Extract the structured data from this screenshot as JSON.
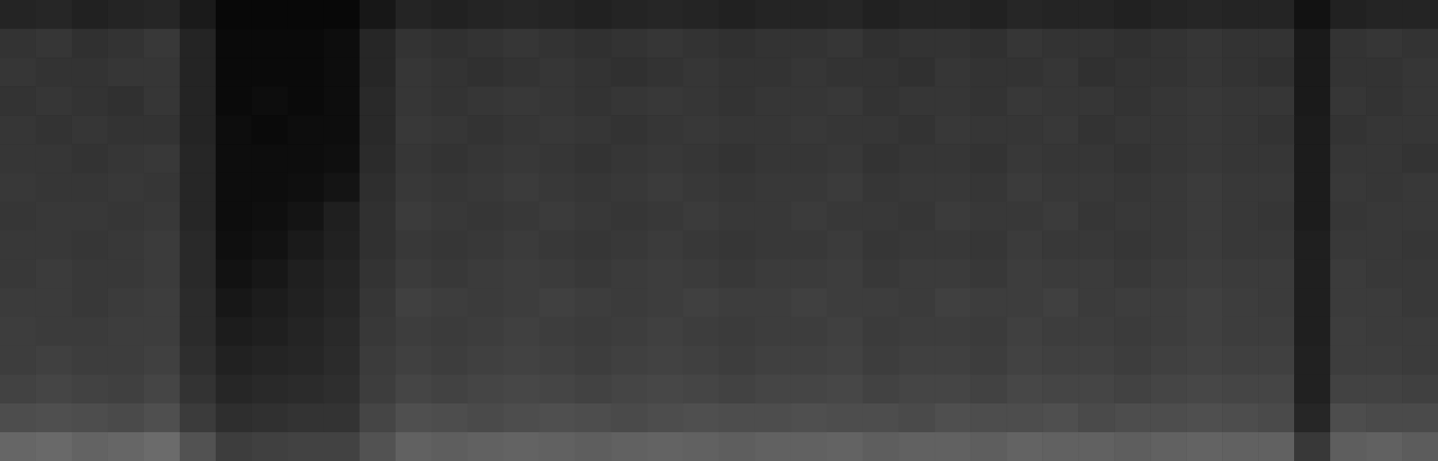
{
  "chart_data": {
    "type": "heatmap",
    "tick_labels": false,
    "grid": false,
    "cells": [
      [
        14,
        15,
        13,
        14,
        15,
        10,
        3,
        3,
        3,
        3,
        9,
        14,
        13,
        14,
        15,
        14,
        13,
        14,
        15,
        14,
        13,
        14,
        14,
        15,
        13,
        14,
        14,
        13,
        15,
        14,
        14,
        13,
        14,
        15,
        14,
        14,
        7,
        13,
        14,
        14
      ],
      [
        20,
        21,
        19,
        20,
        22,
        14,
        4,
        4,
        4,
        5,
        15,
        20,
        19,
        20,
        21,
        20,
        19,
        20,
        21,
        20,
        19,
        20,
        20,
        21,
        19,
        20,
        20,
        19,
        21,
        20,
        20,
        19,
        20,
        21,
        20,
        20,
        10,
        20,
        21,
        20
      ],
      [
        21,
        20,
        20,
        21,
        21,
        14,
        4,
        4,
        4,
        5,
        15,
        21,
        20,
        19,
        20,
        21,
        20,
        19,
        20,
        21,
        20,
        20,
        21,
        20,
        20,
        19,
        21,
        20,
        20,
        21,
        19,
        20,
        20,
        21,
        20,
        19,
        10,
        20,
        20,
        21
      ],
      [
        20,
        21,
        20,
        19,
        21,
        14,
        4,
        5,
        4,
        5,
        16,
        21,
        20,
        21,
        22,
        21,
        20,
        21,
        22,
        21,
        20,
        21,
        21,
        22,
        20,
        21,
        21,
        20,
        22,
        21,
        21,
        20,
        21,
        22,
        21,
        21,
        10,
        21,
        20,
        21
      ],
      [
        21,
        20,
        21,
        20,
        20,
        14,
        5,
        4,
        5,
        5,
        16,
        22,
        21,
        20,
        21,
        22,
        21,
        20,
        21,
        22,
        21,
        21,
        22,
        21,
        21,
        20,
        22,
        21,
        21,
        22,
        20,
        21,
        21,
        22,
        21,
        20,
        11,
        20,
        21,
        21
      ],
      [
        21,
        21,
        20,
        21,
        22,
        15,
        5,
        5,
        5,
        6,
        17,
        21,
        20,
        21,
        22,
        21,
        20,
        21,
        22,
        21,
        20,
        21,
        21,
        22,
        20,
        21,
        21,
        20,
        22,
        21,
        21,
        20,
        21,
        22,
        21,
        21,
        11,
        21,
        21,
        20
      ],
      [
        22,
        21,
        21,
        22,
        21,
        15,
        5,
        5,
        6,
        8,
        18,
        22,
        21,
        22,
        23,
        22,
        21,
        22,
        23,
        22,
        21,
        22,
        22,
        23,
        21,
        22,
        22,
        21,
        23,
        22,
        22,
        21,
        22,
        23,
        22,
        22,
        11,
        22,
        21,
        22
      ],
      [
        21,
        22,
        22,
        21,
        22,
        15,
        5,
        6,
        8,
        12,
        19,
        23,
        22,
        21,
        22,
        23,
        22,
        21,
        22,
        23,
        22,
        22,
        23,
        22,
        22,
        21,
        23,
        22,
        22,
        23,
        21,
        22,
        22,
        23,
        22,
        21,
        11,
        21,
        22,
        22
      ],
      [
        22,
        22,
        21,
        22,
        23,
        16,
        6,
        7,
        10,
        13,
        19,
        22,
        21,
        22,
        23,
        22,
        21,
        22,
        23,
        22,
        21,
        22,
        22,
        23,
        21,
        22,
        22,
        21,
        23,
        22,
        22,
        21,
        22,
        23,
        22,
        22,
        12,
        22,
        22,
        21
      ],
      [
        22,
        23,
        22,
        22,
        23,
        16,
        7,
        9,
        12,
        14,
        20,
        23,
        22,
        23,
        24,
        23,
        22,
        23,
        24,
        23,
        22,
        23,
        23,
        24,
        22,
        23,
        23,
        22,
        24,
        23,
        23,
        22,
        23,
        24,
        23,
        23,
        12,
        23,
        22,
        22
      ],
      [
        23,
        23,
        22,
        23,
        24,
        17,
        9,
        11,
        13,
        15,
        21,
        25,
        24,
        23,
        24,
        25,
        24,
        23,
        24,
        25,
        24,
        24,
        25,
        24,
        24,
        23,
        25,
        24,
        24,
        25,
        23,
        24,
        24,
        25,
        24,
        23,
        12,
        23,
        23,
        22
      ],
      [
        24,
        23,
        23,
        24,
        24,
        17,
        11,
        12,
        14,
        16,
        22,
        24,
        23,
        24,
        25,
        24,
        23,
        24,
        25,
        24,
        23,
        24,
        24,
        25,
        23,
        24,
        24,
        23,
        25,
        24,
        24,
        23,
        24,
        25,
        24,
        24,
        12,
        24,
        23,
        23
      ],
      [
        24,
        25,
        24,
        24,
        25,
        18,
        13,
        14,
        15,
        17,
        23,
        25,
        24,
        25,
        26,
        25,
        24,
        25,
        26,
        25,
        24,
        25,
        25,
        26,
        24,
        25,
        25,
        24,
        26,
        25,
        25,
        24,
        25,
        26,
        25,
        25,
        13,
        24,
        24,
        23
      ],
      [
        26,
        27,
        26,
        25,
        27,
        20,
        15,
        16,
        17,
        18,
        24,
        27,
        26,
        27,
        28,
        27,
        26,
        27,
        28,
        27,
        26,
        27,
        27,
        28,
        26,
        27,
        27,
        26,
        28,
        27,
        27,
        26,
        27,
        28,
        27,
        27,
        13,
        26,
        26,
        25
      ],
      [
        30,
        31,
        30,
        29,
        31,
        23,
        18,
        19,
        20,
        20,
        27,
        31,
        30,
        29,
        30,
        31,
        30,
        29,
        30,
        31,
        30,
        30,
        31,
        30,
        30,
        29,
        31,
        30,
        30,
        31,
        29,
        30,
        30,
        31,
        30,
        29,
        15,
        30,
        29,
        29
      ],
      [
        40,
        41,
        39,
        40,
        42,
        32,
        24,
        25,
        26,
        26,
        32,
        38,
        37,
        38,
        39,
        38,
        37,
        38,
        39,
        38,
        37,
        38,
        38,
        39,
        37,
        38,
        38,
        37,
        39,
        38,
        38,
        37,
        38,
        39,
        38,
        38,
        22,
        37,
        38,
        36
      ]
    ]
  }
}
